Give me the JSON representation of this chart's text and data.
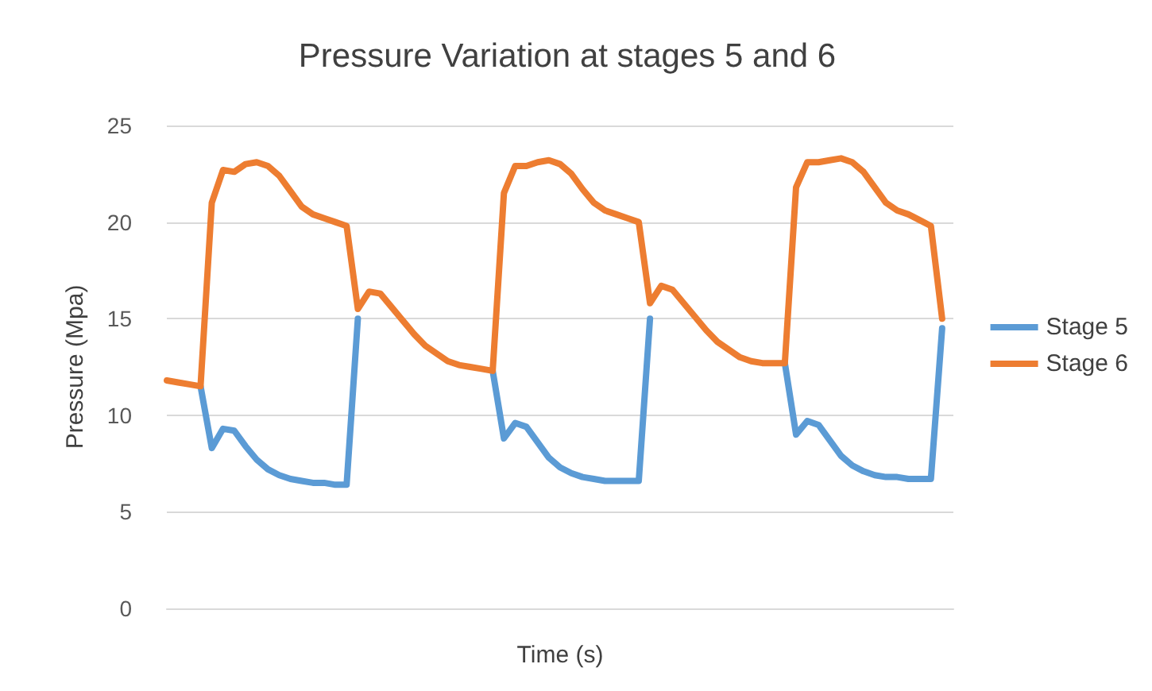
{
  "chart_data": {
    "type": "line",
    "title": "Pressure Variation at stages 5 and 6",
    "xlabel": "Time (s)",
    "ylabel": "Pressure (Mpa)",
    "categories": [
      null,
      null,
      null,
      null,
      null,
      null,
      null,
      null,
      null,
      null,
      null,
      null,
      null,
      null,
      null,
      null,
      null,
      null,
      null,
      null,
      null,
      null,
      null,
      null,
      null,
      null,
      null,
      null,
      null,
      null,
      null,
      null,
      null,
      null,
      null,
      null,
      null,
      null,
      null,
      null,
      null,
      null,
      null,
      null,
      null,
      null,
      null,
      null,
      null,
      null,
      null,
      null,
      null,
      null,
      null,
      null,
      null,
      null,
      null,
      null,
      null,
      null,
      null,
      null,
      null,
      null,
      null,
      null,
      null,
      null,
      null
    ],
    "series": [
      {
        "name": "Stage 5",
        "color": "#5b9bd5",
        "values": [
          null,
          null,
          null,
          11.5,
          8.3,
          9.3,
          9.2,
          8.4,
          7.7,
          7.2,
          6.9,
          6.7,
          6.6,
          6.5,
          6.5,
          6.4,
          6.4,
          15,
          null,
          null,
          null,
          null,
          null,
          null,
          null,
          null,
          null,
          null,
          null,
          12.3,
          8.8,
          9.6,
          9.4,
          8.6,
          7.8,
          7.3,
          7.0,
          6.8,
          6.7,
          6.6,
          6.6,
          6.6,
          6.6,
          15,
          null,
          null,
          null,
          null,
          null,
          null,
          null,
          null,
          null,
          null,
          null,
          12.7,
          9.0,
          9.7,
          9.5,
          8.7,
          7.9,
          7.4,
          7.1,
          6.9,
          6.8,
          6.8,
          6.7,
          6.7,
          6.7,
          14.5,
          null
        ]
      },
      {
        "name": "Stage 6",
        "color": "#ed7d31",
        "values": [
          11.8,
          11.7,
          11.6,
          11.5,
          21,
          22.7,
          22.6,
          23.0,
          23.1,
          22.9,
          22.4,
          21.6,
          20.8,
          20.4,
          20.2,
          20.0,
          19.8,
          15.5,
          16.4,
          16.3,
          15.6,
          14.9,
          14.2,
          13.6,
          13.2,
          12.8,
          12.6,
          12.5,
          12.4,
          12.3,
          21.5,
          22.9,
          22.9,
          23.1,
          23.2,
          23.0,
          22.5,
          21.7,
          21.0,
          20.6,
          20.4,
          20.2,
          20.0,
          15.8,
          16.7,
          16.5,
          15.8,
          15.1,
          14.4,
          13.8,
          13.4,
          13.0,
          12.8,
          12.7,
          12.7,
          12.7,
          21.8,
          23.1,
          23.1,
          23.2,
          23.3,
          23.1,
          22.6,
          21.8,
          21.0,
          20.6,
          20.4,
          20.1,
          19.8,
          15.0,
          null
        ]
      }
    ],
    "ylim": [
      0,
      25
    ],
    "yticks": [
      0,
      5,
      10,
      15,
      20,
      25
    ],
    "grid": "y",
    "legend": "right",
    "tick_labels": "y",
    "line_style": "solid"
  }
}
